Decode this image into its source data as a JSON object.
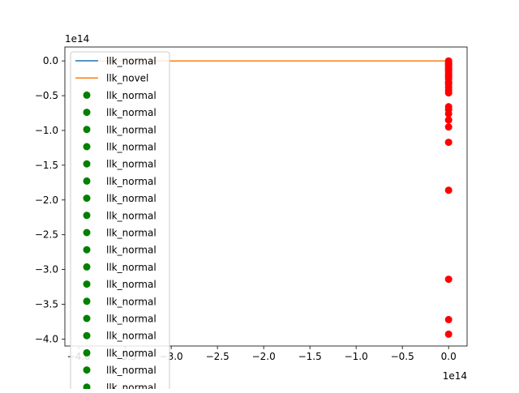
{
  "chart_data": {
    "type": "scatter",
    "title": "",
    "xlabel": "",
    "ylabel": "",
    "x_offset_label": "1e14",
    "y_offset_label": "1e14",
    "xlim": [
      -4.15,
      0.2
    ],
    "ylim": [
      -4.1,
      0.2
    ],
    "x_ticks": [
      -4.0,
      -3.5,
      -3.0,
      -2.5,
      -2.0,
      -1.5,
      -1.0,
      -0.5,
      0.0
    ],
    "x_tick_labels": [
      "−4.0",
      "−3.5",
      "−3.0",
      "−2.5",
      "−2.0",
      "−1.5",
      "−1.0",
      "−0.5",
      "0.0"
    ],
    "y_ticks": [
      0.0,
      -0.5,
      -1.0,
      -1.5,
      -2.0,
      -2.5,
      -3.0,
      -3.5,
      -4.0
    ],
    "y_tick_labels": [
      "0.0",
      "−0.5",
      "−1.0",
      "−1.5",
      "−2.0",
      "−2.5",
      "−3.0",
      "−3.5",
      "−4.0"
    ],
    "grid": false,
    "legend": {
      "placement": "upper-left",
      "entries": [
        {
          "label": "llk_normal",
          "kind": "line",
          "color": "#1f77b4"
        },
        {
          "label": "llk_novel",
          "kind": "line",
          "color": "#ff7f0e"
        },
        {
          "label": "llk_normal",
          "kind": "marker",
          "color": "#008000"
        },
        {
          "label": "llk_normal",
          "kind": "marker",
          "color": "#008000"
        },
        {
          "label": "llk_normal",
          "kind": "marker",
          "color": "#008000"
        },
        {
          "label": "llk_normal",
          "kind": "marker",
          "color": "#008000"
        },
        {
          "label": "llk_normal",
          "kind": "marker",
          "color": "#008000"
        },
        {
          "label": "llk_normal",
          "kind": "marker",
          "color": "#008000"
        },
        {
          "label": "llk_normal",
          "kind": "marker",
          "color": "#008000"
        },
        {
          "label": "llk_normal",
          "kind": "marker",
          "color": "#008000"
        },
        {
          "label": "llk_normal",
          "kind": "marker",
          "color": "#008000"
        },
        {
          "label": "llk_normal",
          "kind": "marker",
          "color": "#008000"
        },
        {
          "label": "llk_normal",
          "kind": "marker",
          "color": "#008000"
        },
        {
          "label": "llk_normal",
          "kind": "marker",
          "color": "#008000"
        },
        {
          "label": "llk_normal",
          "kind": "marker",
          "color": "#008000"
        },
        {
          "label": "llk_normal",
          "kind": "marker",
          "color": "#008000"
        },
        {
          "label": "llk_normal",
          "kind": "marker",
          "color": "#008000"
        },
        {
          "label": "llk_normal",
          "kind": "marker",
          "color": "#008000"
        },
        {
          "label": "llk_normal",
          "kind": "marker",
          "color": "#008000"
        },
        {
          "label": "llk_normal",
          "kind": "marker",
          "color": "#008000"
        }
      ]
    },
    "lines": [
      {
        "name": "llk_normal",
        "color": "#1f77b4",
        "x": [
          -4.0,
          0.0
        ],
        "y": [
          0.0,
          0.0
        ]
      },
      {
        "name": "llk_novel",
        "color": "#ff7f0e",
        "x": [
          -4.0,
          0.0
        ],
        "y": [
          0.0,
          0.0
        ]
      }
    ],
    "scatter_points": {
      "color": "#ff0000",
      "x": [
        0.0,
        0.0,
        0.0,
        0.0,
        0.0,
        0.0,
        0.0,
        0.0,
        0.0,
        0.0,
        0.0,
        0.0,
        0.0,
        0.0,
        0.0,
        0.0,
        0.0,
        0.0,
        0.0,
        0.0,
        0.0,
        0.0,
        0.0,
        0.0,
        0.0,
        0.0,
        0.0,
        0.0,
        0.0,
        0.0,
        0.0
      ],
      "y": [
        0.0,
        -0.02,
        -0.04,
        -0.06,
        -0.08,
        -0.1,
        -0.12,
        -0.15,
        -0.18,
        -0.2,
        -0.23,
        -0.26,
        -0.3,
        -0.34,
        -0.38,
        -0.42,
        -0.46,
        -0.66,
        -0.7,
        -0.76,
        -0.85,
        -0.95,
        -1.17,
        -1.86,
        -3.14,
        -3.72,
        -3.93,
        -0.05,
        -0.13,
        -0.22,
        -0.32
      ]
    }
  }
}
